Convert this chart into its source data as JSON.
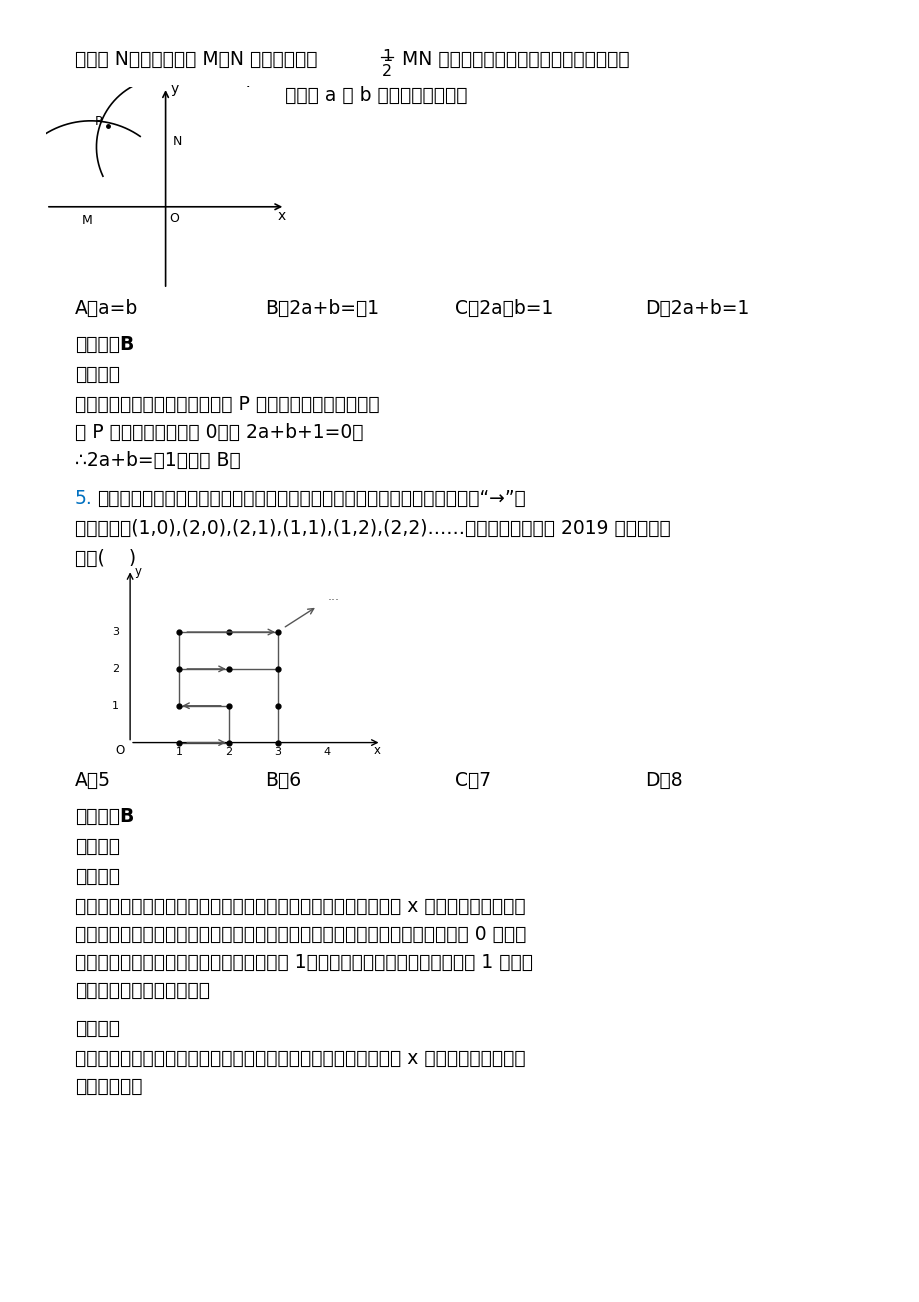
{
  "bg_color": "#ffffff",
  "text_color": "#000000",
  "blue_color": "#0070c0",
  "choices1": [
    "A．a=b",
    "B．2a+b=－1",
    "C．2a－b=1",
    "D．2a+b=1"
  ],
  "answer1": "》答案「B",
  "jiexi1": "》解析「",
  "analysis1_line1": "试题分析：根据作图方法可得点 P 在第二象限角平分线上，",
  "analysis1_line2": "则 P 点横纵坐标的和为 0，即 2a+b+1=0，",
  "analysis1_line3": "∴2a+b=－1．故选 B．",
  "q5_line1": "如图，在平面直角坐标系中，有若干个横坐标分别为整数的点，其顺序按图中“→”方",
  "q5_line2": "向排列，如(1,0),(2,0),(2,1),(1,1),(1,2),(2,2)……根据这个规律，第 2019 个点的纵坐",
  "q5_line3": "标为(    )",
  "choices2": [
    "A．5",
    "B．6",
    "C．7",
    "D．8"
  ],
  "answer2": "》答案「B",
  "jiexi2": "》解析「",
  "fenxi": "》分析「",
  "analysis2_line1": "观察图形可知，以最外边的矩形边长上的点为准，点的总个数等于 x 轴上右下角的点的横",
  "analysis2_line2": "坐标的平方，并且右下角的点的横坐标是奇数时最后以横坐标为该数，纵坐标为 0 结束，",
  "analysis2_line3": "当右下角的点横坐标是偶数时，以横坐标为 1，纵坐标为右下角横坐标的偶数减 1 的点结",
  "analysis2_line4": "束，根据此规律解答即可．",
  "xiangji": "》详解「",
  "detail_line1": "解：根据图形，以最外边的矩形边长上的点为准，点的总个数等于 x 轴上右下角的点的横",
  "detail_line2": "坐标的平方，"
}
